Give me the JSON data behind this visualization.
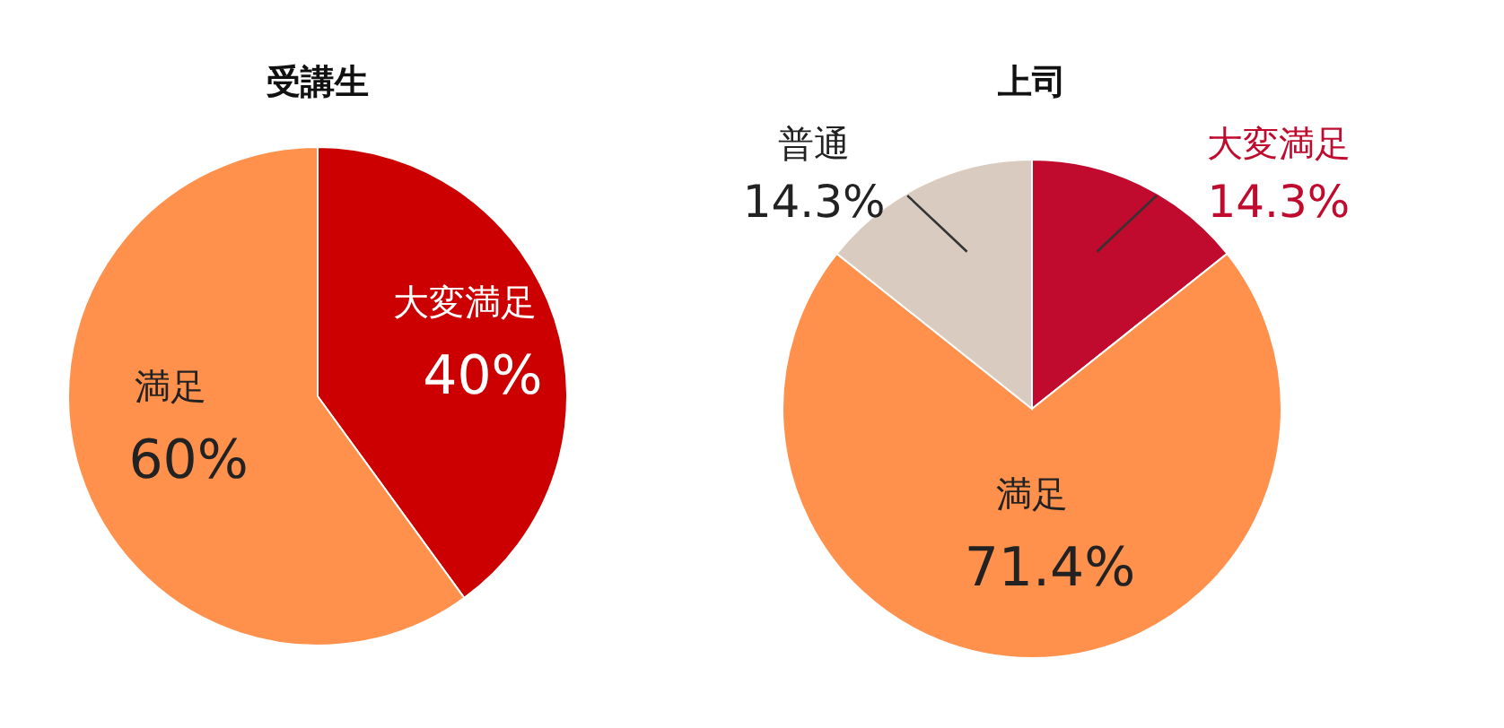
{
  "chart_data": [
    {
      "type": "pie",
      "title": "受講生",
      "categories": [
        "大変満足",
        "満足"
      ],
      "values": [
        40,
        60
      ],
      "colors": [
        "#cc0000",
        "#ff914d"
      ],
      "value_labels": [
        "40%",
        "60%"
      ]
    },
    {
      "type": "pie",
      "title": "上司",
      "categories": [
        "大変満足",
        "満足",
        "普通"
      ],
      "values": [
        14.3,
        71.4,
        14.3
      ],
      "colors": [
        "#c00a2e",
        "#ff914d",
        "#d9cbbf"
      ],
      "value_labels": [
        "14.3%",
        "71.4%",
        "14.3%"
      ]
    }
  ]
}
